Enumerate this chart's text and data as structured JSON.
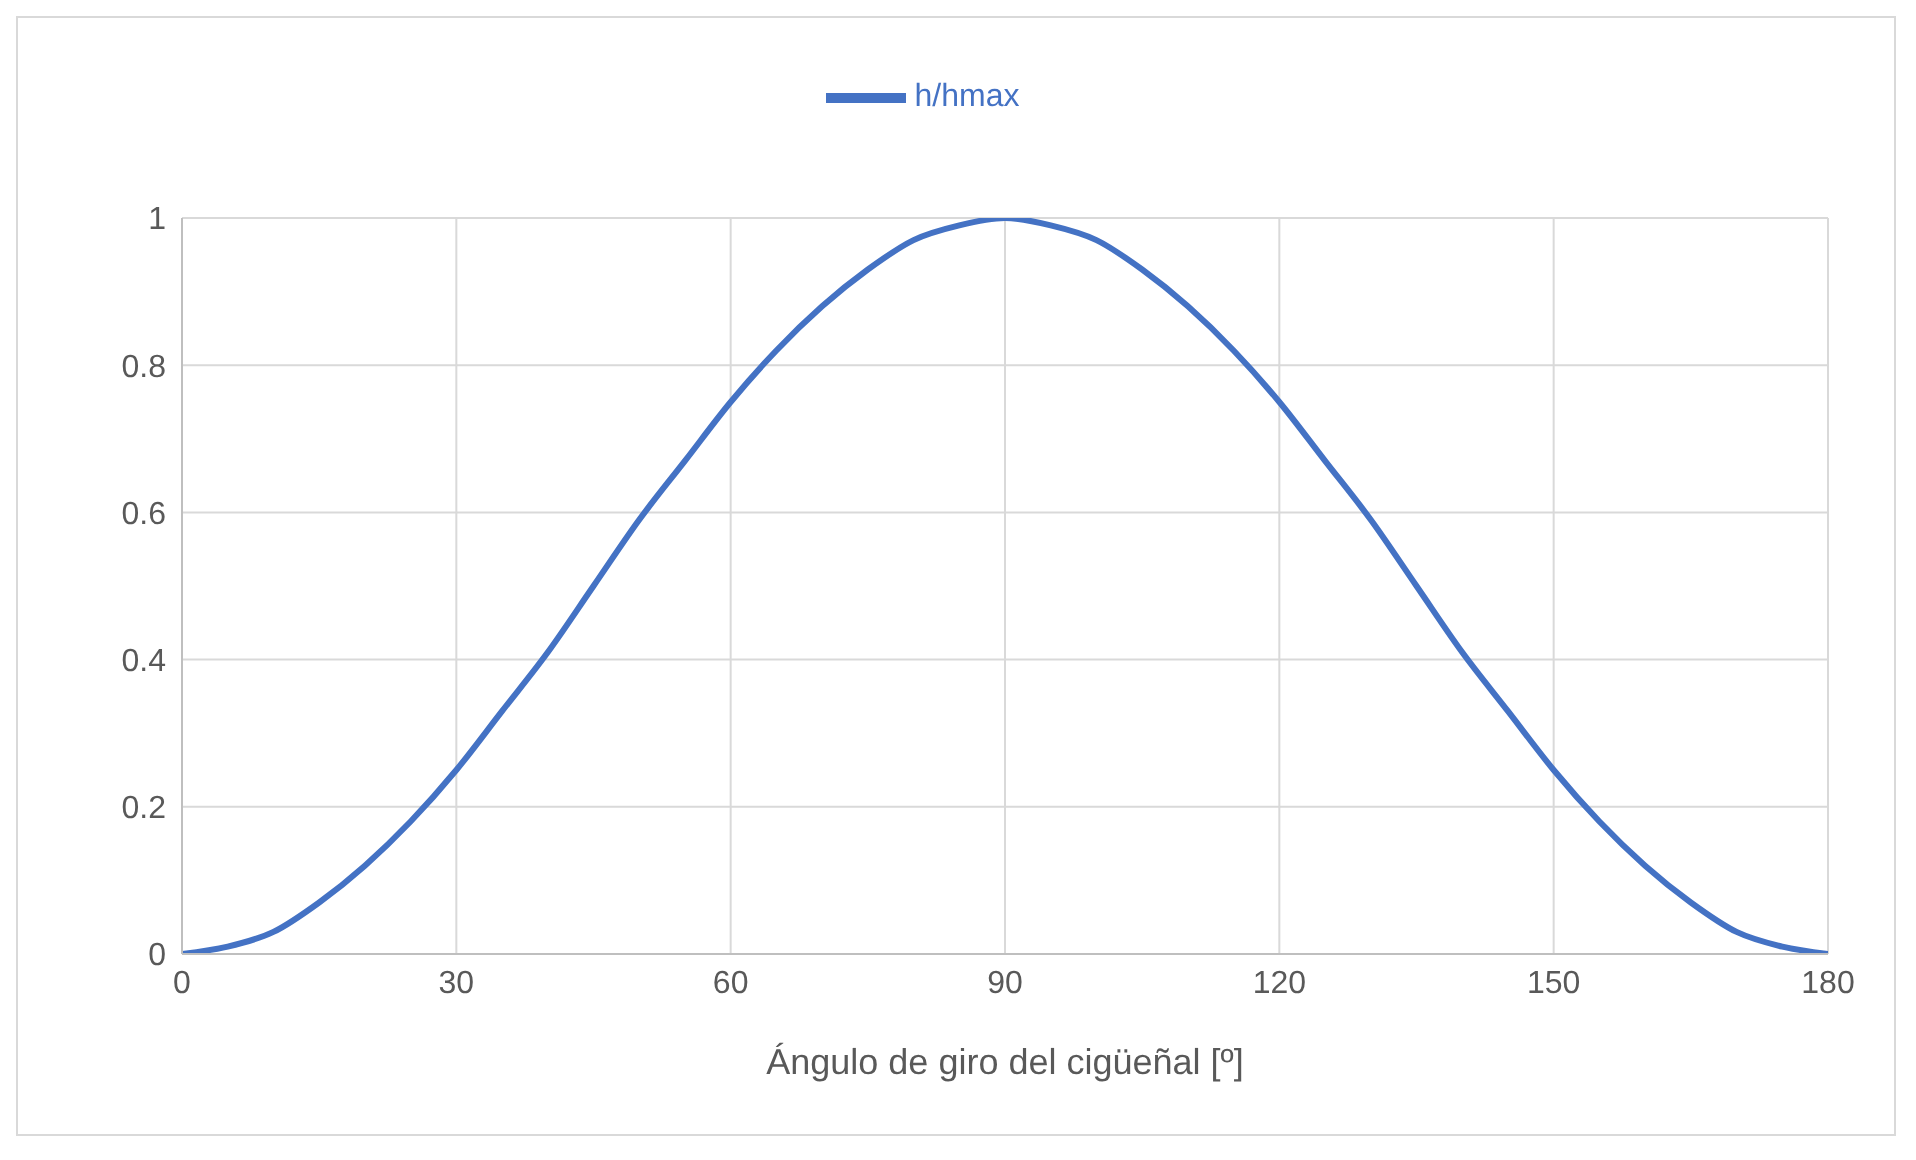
{
  "chart_data": {
    "type": "line",
    "xlabel": "Ángulo de giro del cigüeñal [º]",
    "x": [
      0,
      5,
      10,
      15,
      20,
      25,
      30,
      35,
      40,
      45,
      50,
      55,
      60,
      65,
      70,
      75,
      80,
      85,
      90,
      95,
      100,
      105,
      110,
      115,
      120,
      125,
      130,
      135,
      140,
      145,
      150,
      155,
      160,
      165,
      170,
      175,
      180
    ],
    "series": [
      {
        "name": "h/hmax",
        "color": "#4472c4",
        "values": [
          0,
          0.01,
          0.03,
          0.07,
          0.12,
          0.18,
          0.25,
          0.33,
          0.41,
          0.5,
          0.59,
          0.67,
          0.75,
          0.82,
          0.88,
          0.93,
          0.97,
          0.99,
          1,
          0.99,
          0.97,
          0.93,
          0.88,
          0.82,
          0.75,
          0.67,
          0.59,
          0.5,
          0.41,
          0.33,
          0.25,
          0.18,
          0.12,
          0.07,
          0.03,
          0.01,
          0
        ]
      }
    ],
    "xlim": [
      0,
      180
    ],
    "xticks": [
      0,
      30,
      60,
      90,
      120,
      150,
      180
    ],
    "ylim": [
      0,
      1
    ],
    "yticks": [
      0,
      0.2,
      0.4,
      0.6,
      0.8,
      1
    ],
    "grid": true,
    "legend": "top",
    "marker": "none",
    "line_style": "solid"
  }
}
